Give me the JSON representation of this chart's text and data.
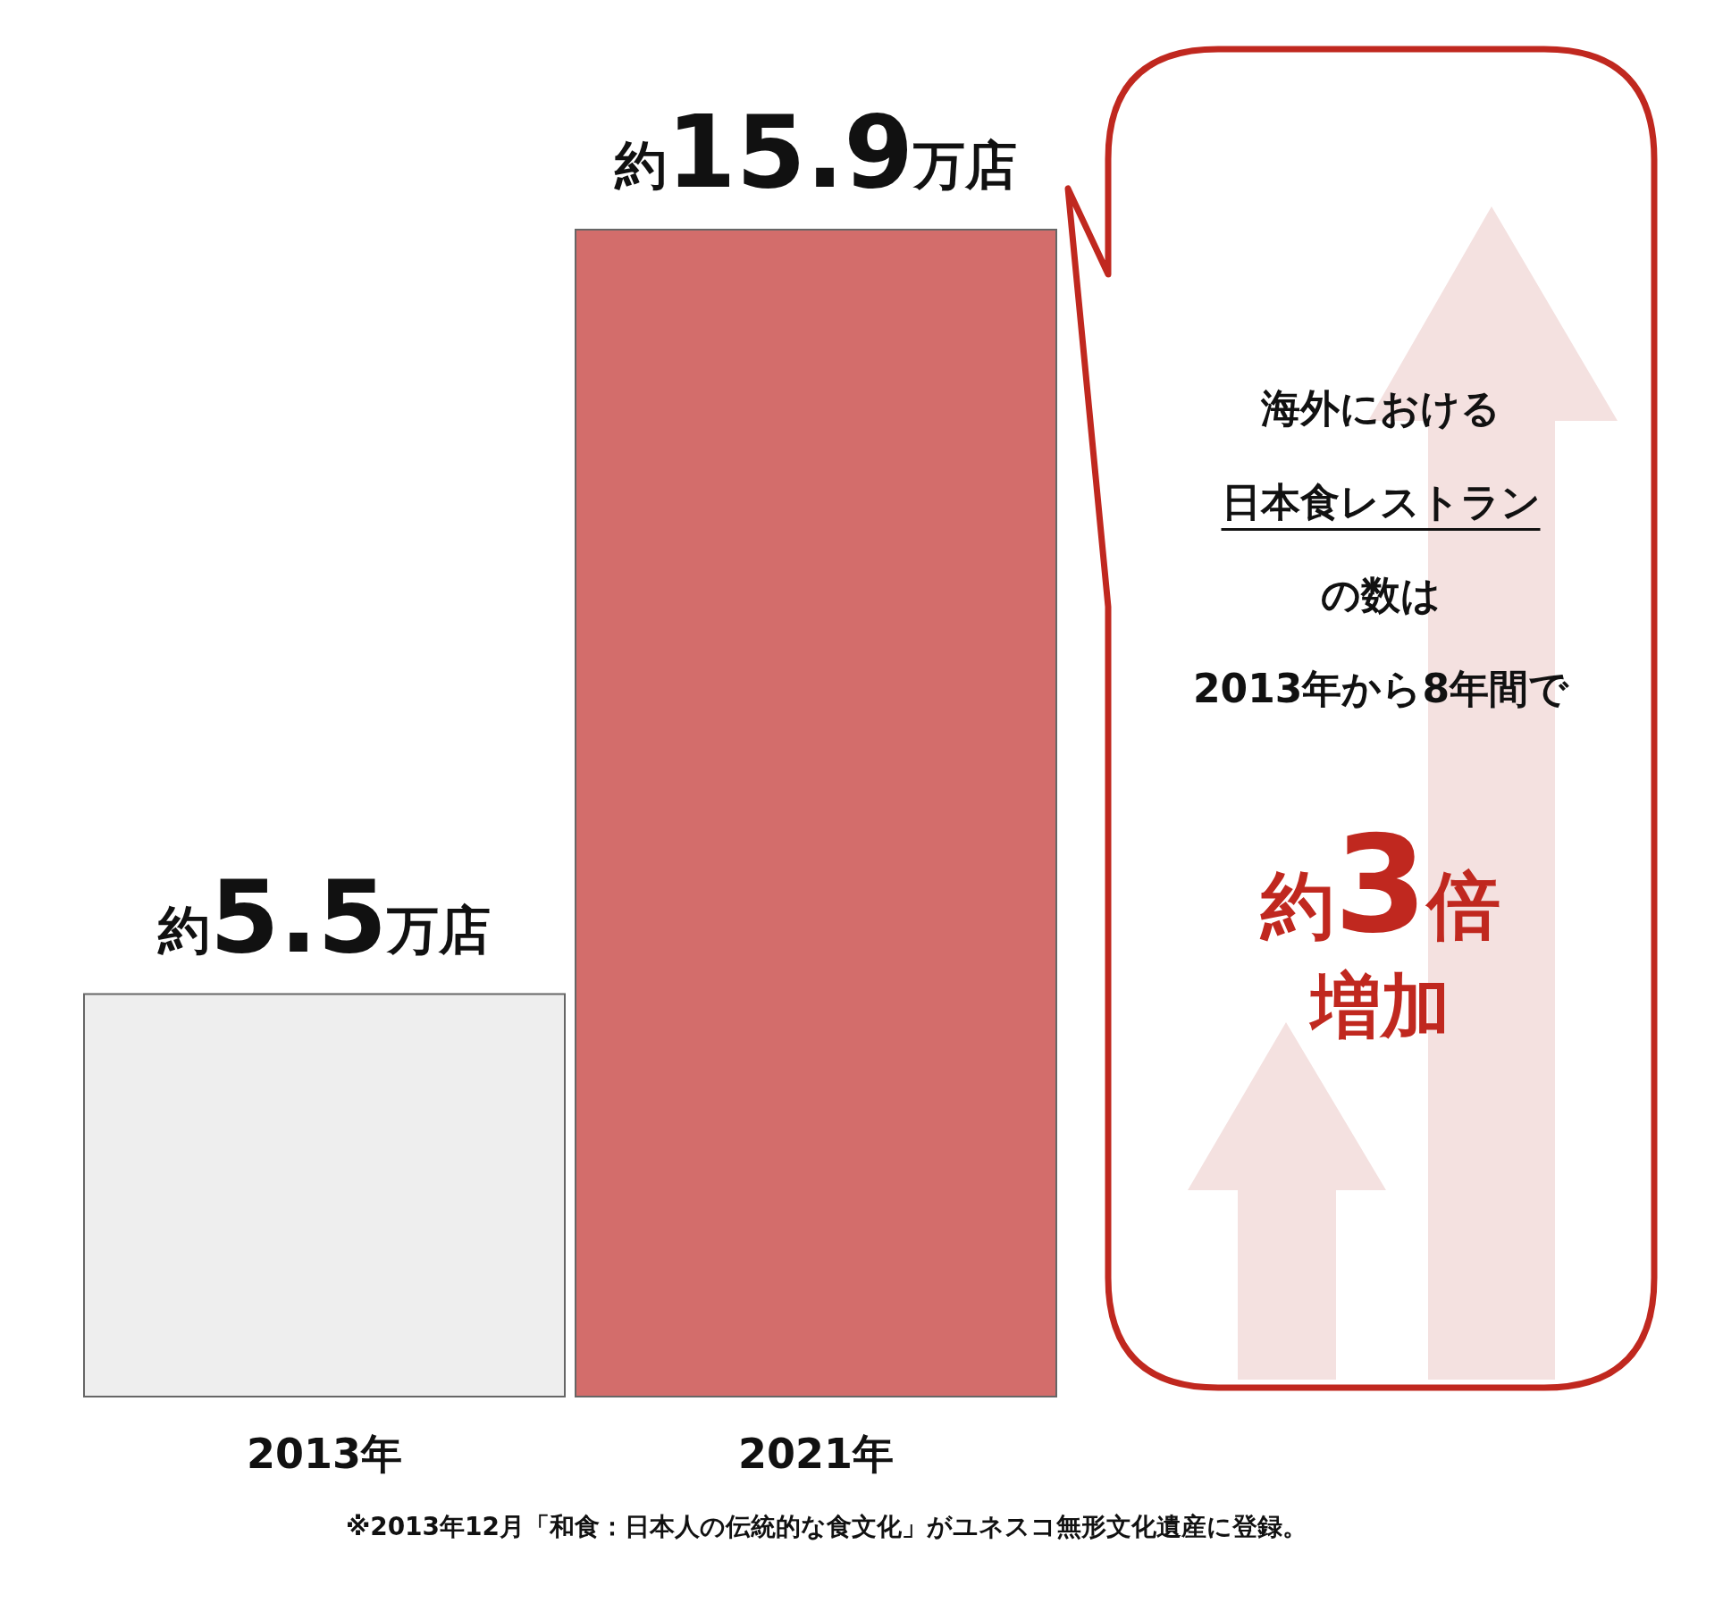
{
  "chart_data": {
    "type": "bar",
    "categories": [
      "2013年",
      "2021年"
    ],
    "values": [
      5.5,
      15.9
    ],
    "colors": [
      "#eeeeee",
      "#d36d6b"
    ],
    "value_labels": [
      "約5.5万店",
      "約15.9万店"
    ],
    "annotations": [
      "海外における",
      "日本食レストラン",
      "の数は",
      "2013年から8年間で",
      "約3倍",
      "増加",
      "※2013年12月「和食：日本人の伝統的な食文化」がユネスコ無形文化遺産に登録。"
    ]
  }
}
